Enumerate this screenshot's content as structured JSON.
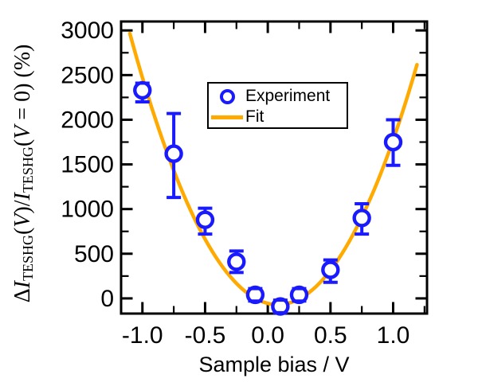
{
  "figure": {
    "xlabel": "Sample bias / V",
    "ylabel_plain": "ΔI_TESHG(V)/I_TESHG(V = 0) (%)",
    "ylabel_segments": [
      {
        "text": "Δ",
        "style": "up"
      },
      {
        "text": "I",
        "style": "it"
      },
      {
        "text": "TESHG",
        "style": "sub"
      },
      {
        "text": "(",
        "style": "up"
      },
      {
        "text": "V",
        "style": "it"
      },
      {
        "text": ")/",
        "style": "up"
      },
      {
        "text": "I",
        "style": "it"
      },
      {
        "text": "TESHG",
        "style": "sub"
      },
      {
        "text": "(",
        "style": "up"
      },
      {
        "text": "V",
        "style": "it"
      },
      {
        "text": " = 0) (%)",
        "style": "up"
      }
    ],
    "legend": {
      "entries": [
        {
          "label": "Experiment",
          "marker": "open-circle",
          "color": "#1a1aff"
        },
        {
          "label": "Fit",
          "marker": "line",
          "color": "#ffaa00"
        }
      ]
    }
  },
  "colors": {
    "experiment": "#1a1aff",
    "fit": "#ffaa00",
    "axis": "#000000",
    "background": "#ffffff"
  },
  "chart_data": {
    "type": "scatter",
    "title": "",
    "xlabel": "Sample bias / V",
    "ylabel": "ΔI_TESHG(V)/I_TESHG(V = 0) (%)",
    "xlim": [
      -1.17,
      1.27
    ],
    "ylim": [
      -170,
      3100
    ],
    "grid": false,
    "legend_position": "upper-center-inside",
    "x_ticks": [
      -1.0,
      -0.5,
      0.0,
      0.5,
      1.0
    ],
    "x_tick_labels": [
      "-1.0",
      "-0.5",
      "0.0",
      "0.5",
      "1.0"
    ],
    "x_minor_ticks": [
      -0.75,
      -0.25,
      0.25,
      0.75,
      1.25
    ],
    "y_ticks": [
      0,
      500,
      1000,
      1500,
      2000,
      2500,
      3000
    ],
    "y_tick_labels": [
      "0",
      "500",
      "1000",
      "1500",
      "2000",
      "2500",
      "3000"
    ],
    "y_minor_ticks": [
      250,
      750,
      1250,
      1750,
      2250,
      2750
    ],
    "series": [
      {
        "name": "Experiment",
        "type": "scatter-errorbar",
        "color": "#1a1aff",
        "points": [
          {
            "x": -1.0,
            "y": 2330,
            "y_lo": 2200,
            "y_hi": 2410
          },
          {
            "x": -0.75,
            "y": 1620,
            "y_lo": 1130,
            "y_hi": 2070
          },
          {
            "x": -0.5,
            "y": 880,
            "y_lo": 720,
            "y_hi": 1010
          },
          {
            "x": -0.25,
            "y": 410,
            "y_lo": 290,
            "y_hi": 530
          },
          {
            "x": -0.1,
            "y": 40,
            "y_lo": -30,
            "y_hi": 110
          },
          {
            "x": 0.1,
            "y": -90,
            "y_lo": -160,
            "y_hi": -20
          },
          {
            "x": 0.25,
            "y": 40,
            "y_lo": -30,
            "y_hi": 110
          },
          {
            "x": 0.5,
            "y": 320,
            "y_lo": 180,
            "y_hi": 430
          },
          {
            "x": 0.75,
            "y": 900,
            "y_lo": 720,
            "y_hi": 1060
          },
          {
            "x": 1.0,
            "y": 1750,
            "y_lo": 1490,
            "y_hi": 2000
          }
        ]
      },
      {
        "name": "Fit",
        "type": "parabola-fit",
        "color": "#ffaa00",
        "equation": "y = a·(x − x0)² + c",
        "params": {
          "a": 2180,
          "x0": 0.08,
          "c": -70
        },
        "x_range": [
          -1.1,
          1.19
        ]
      }
    ]
  }
}
